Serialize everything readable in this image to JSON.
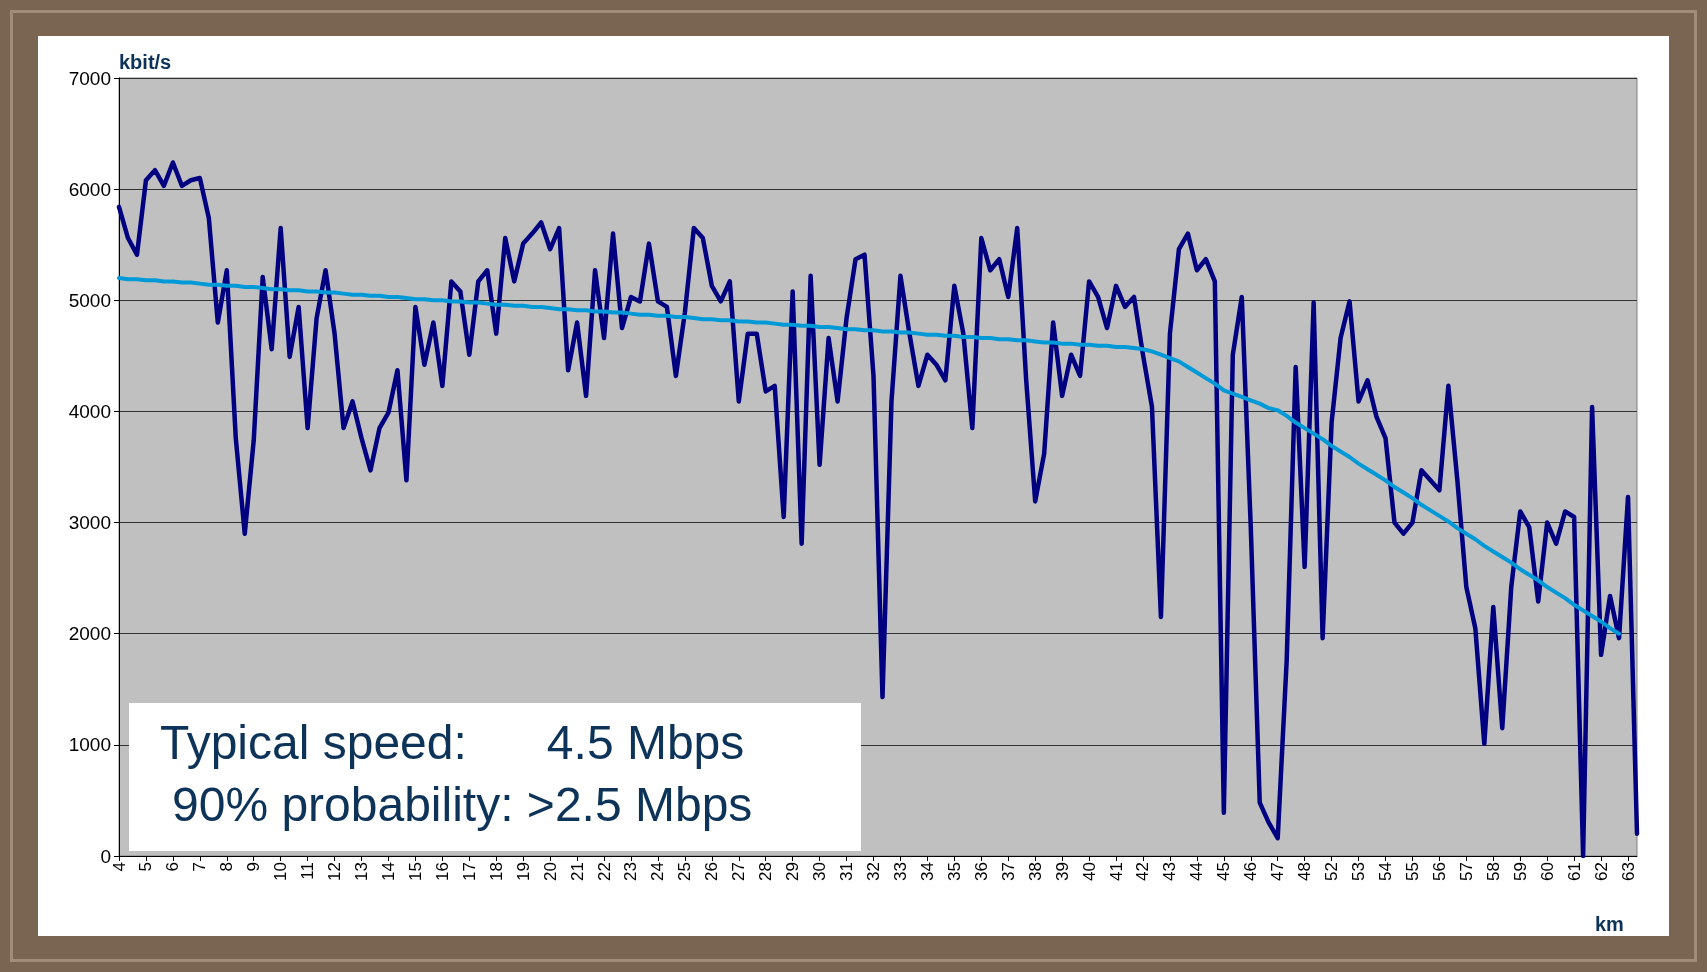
{
  "chart_data": {
    "type": "line",
    "ylabel": "kbit/s",
    "xlabel": "km",
    "ylim": [
      0,
      7000
    ],
    "yticks": [
      0,
      1000,
      2000,
      3000,
      4000,
      5000,
      6000,
      7000
    ],
    "grid": "y",
    "marker": "none",
    "line_style": "solid",
    "categories": [
      "4",
      null,
      null,
      "5",
      null,
      null,
      "6",
      null,
      null,
      "7",
      null,
      null,
      "8",
      null,
      null,
      "9",
      null,
      null,
      "10",
      null,
      null,
      "11",
      null,
      null,
      "12",
      null,
      null,
      "13",
      null,
      null,
      "14",
      null,
      null,
      "15",
      null,
      null,
      "16",
      null,
      null,
      "17",
      null,
      null,
      "18",
      null,
      null,
      "19",
      null,
      null,
      "20",
      null,
      null,
      "21",
      null,
      null,
      "22",
      null,
      null,
      "23",
      null,
      null,
      "24",
      null,
      null,
      "25",
      null,
      null,
      "26",
      null,
      null,
      "27",
      null,
      null,
      "28",
      null,
      null,
      "29",
      null,
      null,
      "30",
      null,
      null,
      "31",
      null,
      null,
      "32",
      null,
      null,
      "33",
      null,
      null,
      "34",
      null,
      null,
      "35",
      null,
      null,
      "36",
      null,
      null,
      "37",
      null,
      null,
      "38",
      null,
      null,
      "39",
      null,
      null,
      "40",
      null,
      null,
      "41",
      null,
      null,
      "42",
      null,
      null,
      "43",
      null,
      null,
      "44",
      null,
      null,
      "45",
      null,
      null,
      "46",
      null,
      null,
      "47",
      null,
      null,
      "48",
      null,
      null,
      "52",
      null,
      null,
      "53",
      null,
      null,
      "54",
      null,
      null,
      "55",
      null,
      null,
      "56",
      null,
      null,
      "57",
      null,
      null,
      "58",
      null,
      null,
      "59",
      null,
      null,
      "60",
      null,
      null,
      "61",
      null,
      null,
      "62",
      null,
      null,
      "63",
      null
    ],
    "series": [
      {
        "color": "#000080",
        "values": [
          5840,
          5560,
          5410,
          6080,
          6170,
          6030,
          6240,
          6030,
          6080,
          6100,
          5740,
          4800,
          5270,
          3760,
          2900,
          3740,
          5210,
          4560,
          5650,
          4490,
          4940,
          3850,
          4840,
          5270,
          4700,
          3850,
          4090,
          3760,
          3470,
          3850,
          3990,
          4370,
          3380,
          4940,
          4420,
          4800,
          4230,
          5170,
          5080,
          4510,
          5170,
          5270,
          4700,
          5560,
          5170,
          5510,
          5600,
          5700,
          5460,
          5650,
          4370,
          4800,
          4140,
          5270,
          4660,
          5600,
          4750,
          5030,
          4990,
          5510,
          4990,
          4940,
          4320,
          4890,
          5650,
          5560,
          5130,
          4990,
          5170,
          4090,
          4700,
          4700,
          4180,
          4230,
          3050,
          5080,
          2810,
          5220,
          3520,
          4660,
          4090,
          4840,
          5370,
          5410,
          4320,
          1430,
          4090,
          5220,
          4700,
          4230,
          4510,
          4420,
          4280,
          5130,
          4700,
          3850,
          5560,
          5270,
          5370,
          5030,
          5650,
          4280,
          3190,
          3620,
          4800,
          4140,
          4510,
          4320,
          5170,
          5030,
          4750,
          5130,
          4940,
          5030,
          4510,
          4040,
          2150,
          4700,
          5460,
          5600,
          5270,
          5370,
          5170,
          390,
          4510,
          5030,
          2960,
          480,
          300,
          160,
          1760,
          4400,
          2600,
          4980,
          1960,
          3900,
          4660,
          4990,
          4090,
          4280,
          3950,
          3760,
          3000,
          2900,
          3000,
          3470,
          3380,
          3290,
          4230,
          3380,
          2420,
          2050,
          1010,
          2240,
          1150,
          2420,
          3100,
          2960,
          2290,
          3000,
          2810,
          3100,
          3050,
          0,
          4040,
          1810,
          2340,
          1960,
          3230,
          200
        ]
      },
      {
        "color": "#0099d8",
        "values": [
          5200,
          5190,
          5190,
          5180,
          5180,
          5170,
          5170,
          5160,
          5160,
          5150,
          5140,
          5140,
          5130,
          5130,
          5120,
          5120,
          5110,
          5100,
          5100,
          5090,
          5090,
          5080,
          5080,
          5070,
          5070,
          5060,
          5050,
          5050,
          5040,
          5040,
          5030,
          5030,
          5020,
          5010,
          5010,
          5000,
          5000,
          4990,
          4990,
          4980,
          4980,
          4970,
          4960,
          4960,
          4950,
          4950,
          4940,
          4940,
          4930,
          4920,
          4920,
          4910,
          4910,
          4900,
          4900,
          4890,
          4890,
          4880,
          4870,
          4870,
          4860,
          4860,
          4850,
          4850,
          4840,
          4830,
          4830,
          4820,
          4820,
          4810,
          4810,
          4800,
          4800,
          4790,
          4780,
          4780,
          4770,
          4770,
          4760,
          4760,
          4750,
          4740,
          4740,
          4730,
          4730,
          4720,
          4720,
          4710,
          4710,
          4700,
          4690,
          4690,
          4680,
          4680,
          4670,
          4670,
          4660,
          4660,
          4650,
          4650,
          4640,
          4640,
          4630,
          4620,
          4620,
          4610,
          4610,
          4600,
          4600,
          4590,
          4590,
          4580,
          4580,
          4570,
          4560,
          4540,
          4510,
          4480,
          4450,
          4400,
          4350,
          4300,
          4250,
          4190,
          4160,
          4130,
          4100,
          4070,
          4030,
          4010,
          3960,
          3900,
          3850,
          3800,
          3750,
          3690,
          3640,
          3590,
          3530,
          3480,
          3430,
          3380,
          3320,
          3270,
          3220,
          3160,
          3110,
          3060,
          3010,
          2950,
          2900,
          2850,
          2790,
          2740,
          2690,
          2640,
          2580,
          2530,
          2480,
          2420,
          2370,
          2320,
          2260,
          2210,
          2160,
          2110,
          2050,
          2000,
          null,
          null
        ]
      }
    ],
    "annotations": [
      "Typical speed:      4.5 Mbps",
      "90% probability: >2.5 Mbps"
    ]
  }
}
